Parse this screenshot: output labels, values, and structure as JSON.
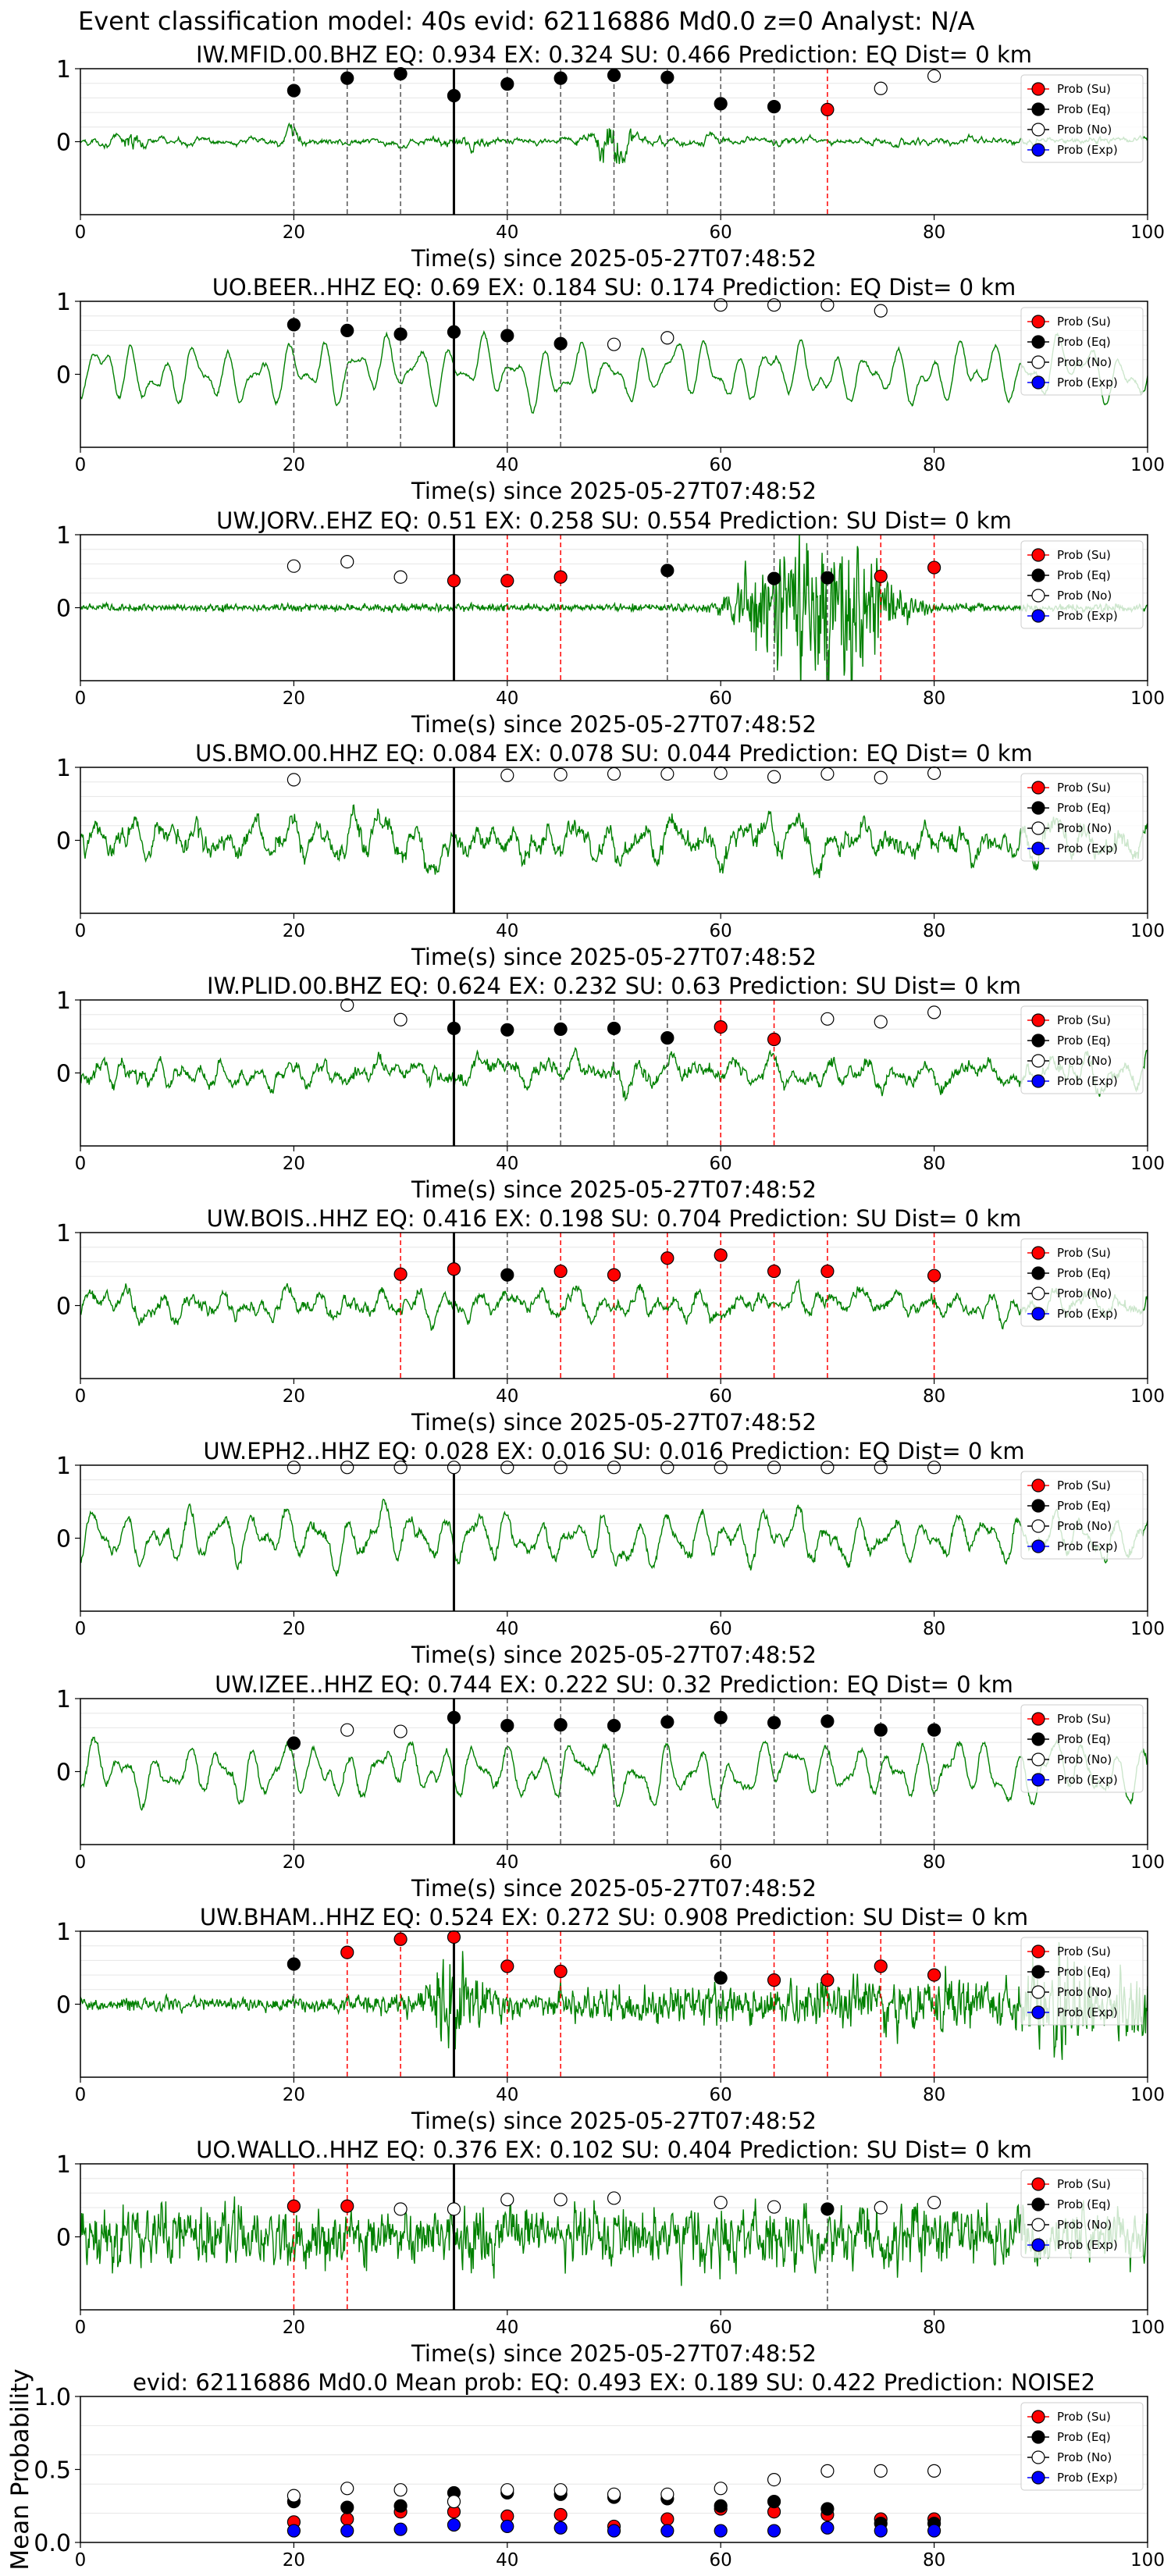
{
  "suptitle": "Event classification model: 40s evid: 62116886 Md0.0 z=0 Analyst: N/A",
  "colors": {
    "trace": "#008000",
    "su": "#ff0000",
    "eq": "#000000",
    "no": "#ffffff",
    "exp": "#0000ff",
    "eq_line": "#555555",
    "su_line": "#ff0000",
    "grid": "#e6e6e6"
  },
  "legend_labels": [
    "Prob (Su)",
    "Prob (Eq)",
    "Prob (No)",
    "Prob (Exp)"
  ],
  "chart_data": [
    {
      "type": "line",
      "title": "IW.MFID.00.BHZ   EQ: 0.934   EX: 0.324   SU: 0.466   Prediction: EQ    Dist= 0 km",
      "xlabel": "Time(s) since 2025-05-27T07:48:52",
      "xlim": [
        0,
        100
      ],
      "ylim": [
        -1,
        1
      ],
      "xticks": [
        0,
        20,
        40,
        60,
        80,
        100
      ],
      "yticks": [
        0,
        1
      ],
      "vline_black": 35,
      "legend": "upper right",
      "trace_style": {
        "amp": 0.12,
        "smooth": 0.85,
        "bursts": [
          {
            "t": 5,
            "a": 0.35,
            "w": 1.2
          },
          {
            "t": 20,
            "a": 0.25,
            "w": 1
          },
          {
            "t": 36,
            "a": 0.15,
            "w": 2
          },
          {
            "t": 50,
            "a": 0.75,
            "w": 1.8
          },
          {
            "t": 58,
            "a": 0.15,
            "w": 2
          }
        ]
      },
      "points": [
        {
          "t": 20,
          "c": "eq",
          "p": 0.7
        },
        {
          "t": 25,
          "c": "eq",
          "p": 0.87
        },
        {
          "t": 30,
          "c": "eq",
          "p": 0.93
        },
        {
          "t": 35,
          "c": "eq",
          "p": 0.63
        },
        {
          "t": 40,
          "c": "eq",
          "p": 0.79
        },
        {
          "t": 45,
          "c": "eq",
          "p": 0.87
        },
        {
          "t": 50,
          "c": "eq",
          "p": 0.91
        },
        {
          "t": 55,
          "c": "eq",
          "p": 0.88
        },
        {
          "t": 60,
          "c": "eq",
          "p": 0.52
        },
        {
          "t": 65,
          "c": "eq",
          "p": 0.48
        },
        {
          "t": 70,
          "c": "su",
          "p": 0.44
        },
        {
          "t": 75,
          "c": "no",
          "p": 0.73
        },
        {
          "t": 80,
          "c": "no",
          "p": 0.9
        }
      ]
    },
    {
      "type": "line",
      "title": "UO.BEER..HHZ   EQ: 0.69   EX: 0.184   SU: 0.174   Prediction: EQ    Dist= 0 km",
      "xlabel": "Time(s) since 2025-05-27T07:48:52",
      "xlim": [
        0,
        100
      ],
      "ylim": [
        -1,
        1
      ],
      "xticks": [
        0,
        20,
        40,
        60,
        80,
        100
      ],
      "yticks": [
        0,
        1
      ],
      "vline_black": 35,
      "legend": "upper right",
      "trace_style": {
        "amp": 0.6,
        "smooth": 0.97,
        "osc": 1.3
      },
      "points": [
        {
          "t": 20,
          "c": "eq",
          "p": 0.68
        },
        {
          "t": 25,
          "c": "eq",
          "p": 0.6
        },
        {
          "t": 30,
          "c": "eq",
          "p": 0.55
        },
        {
          "t": 35,
          "c": "eq",
          "p": 0.58
        },
        {
          "t": 40,
          "c": "eq",
          "p": 0.53
        },
        {
          "t": 45,
          "c": "eq",
          "p": 0.42
        },
        {
          "t": 50,
          "c": "no",
          "p": 0.41
        },
        {
          "t": 55,
          "c": "no",
          "p": 0.5
        },
        {
          "t": 60,
          "c": "no",
          "p": 0.95
        },
        {
          "t": 65,
          "c": "no",
          "p": 0.95
        },
        {
          "t": 70,
          "c": "no",
          "p": 0.95
        },
        {
          "t": 75,
          "c": "no",
          "p": 0.87
        }
      ]
    },
    {
      "type": "line",
      "title": "UW.JORV..EHZ   EQ: 0.51   EX: 0.258   SU: 0.554   Prediction: SU    Dist= 0 km",
      "xlabel": "Time(s) since 2025-05-27T07:48:52",
      "xlim": [
        0,
        100
      ],
      "ylim": [
        -1,
        1
      ],
      "xticks": [
        0,
        20,
        40,
        60,
        80,
        100
      ],
      "yticks": [
        0,
        1
      ],
      "vline_black": 35,
      "legend": "upper right",
      "trace_style": {
        "amp": 0.04,
        "smooth": 0.3,
        "bursts": [
          {
            "t": 70,
            "a": 0.9,
            "w": 5
          },
          {
            "t": 64,
            "a": 0.3,
            "w": 3
          }
        ]
      },
      "points": [
        {
          "t": 20,
          "c": "no",
          "p": 0.57
        },
        {
          "t": 25,
          "c": "no",
          "p": 0.63
        },
        {
          "t": 30,
          "c": "no",
          "p": 0.42
        },
        {
          "t": 35,
          "c": "su",
          "p": 0.37
        },
        {
          "t": 40,
          "c": "su",
          "p": 0.37
        },
        {
          "t": 45,
          "c": "su",
          "p": 0.42
        },
        {
          "t": 55,
          "c": "eq",
          "p": 0.51
        },
        {
          "t": 65,
          "c": "eq",
          "p": 0.4
        },
        {
          "t": 70,
          "c": "eq",
          "p": 0.41
        },
        {
          "t": 75,
          "c": "su",
          "p": 0.43
        },
        {
          "t": 80,
          "c": "su",
          "p": 0.55
        }
      ]
    },
    {
      "type": "line",
      "title": "US.BMO.00.HHZ   EQ: 0.084   EX: 0.078   SU: 0.044   Prediction: EQ    Dist= 0 km",
      "xlabel": "Time(s) since 2025-05-27T07:48:52",
      "xlim": [
        0,
        100
      ],
      "ylim": [
        -1,
        1
      ],
      "xticks": [
        0,
        20,
        40,
        60,
        80,
        100
      ],
      "yticks": [
        0,
        1
      ],
      "vline_black": 35,
      "legend": "upper right",
      "trace_style": {
        "amp": 0.55,
        "smooth": 0.9,
        "osc": 0.8,
        "noise": 0.3
      },
      "points": [
        {
          "t": 20,
          "c": "no",
          "p": 0.83
        },
        {
          "t": 40,
          "c": "no",
          "p": 0.89
        },
        {
          "t": 45,
          "c": "no",
          "p": 0.9
        },
        {
          "t": 50,
          "c": "no",
          "p": 0.91
        },
        {
          "t": 55,
          "c": "no",
          "p": 0.91
        },
        {
          "t": 60,
          "c": "no",
          "p": 0.92
        },
        {
          "t": 65,
          "c": "no",
          "p": 0.87
        },
        {
          "t": 70,
          "c": "no",
          "p": 0.91
        },
        {
          "t": 75,
          "c": "no",
          "p": 0.86
        },
        {
          "t": 80,
          "c": "no",
          "p": 0.92
        }
      ]
    },
    {
      "type": "line",
      "title": "IW.PLID.00.BHZ   EQ: 0.624   EX: 0.232   SU: 0.63   Prediction: SU    Dist= 0 km",
      "xlabel": "Time(s) since 2025-05-27T07:48:52",
      "xlim": [
        0,
        100
      ],
      "ylim": [
        -1,
        1
      ],
      "xticks": [
        0,
        20,
        40,
        60,
        80,
        100
      ],
      "yticks": [
        0,
        1
      ],
      "vline_black": 35,
      "legend": "upper right",
      "trace_style": {
        "amp": 0.4,
        "smooth": 0.9,
        "osc": 0.9,
        "noise": 0.25
      },
      "points": [
        {
          "t": 25,
          "c": "no",
          "p": 0.93
        },
        {
          "t": 30,
          "c": "no",
          "p": 0.73
        },
        {
          "t": 35,
          "c": "eq",
          "p": 0.61
        },
        {
          "t": 40,
          "c": "eq",
          "p": 0.59
        },
        {
          "t": 45,
          "c": "eq",
          "p": 0.6
        },
        {
          "t": 50,
          "c": "eq",
          "p": 0.61
        },
        {
          "t": 55,
          "c": "eq",
          "p": 0.48
        },
        {
          "t": 60,
          "c": "su",
          "p": 0.63
        },
        {
          "t": 65,
          "c": "su",
          "p": 0.46
        },
        {
          "t": 70,
          "c": "no",
          "p": 0.74
        },
        {
          "t": 75,
          "c": "no",
          "p": 0.7
        },
        {
          "t": 80,
          "c": "no",
          "p": 0.83
        }
      ]
    },
    {
      "type": "line",
      "title": "UW.BOIS..HHZ   EQ: 0.416   EX: 0.198   SU: 0.704   Prediction: SU    Dist= 0 km",
      "xlabel": "Time(s) since 2025-05-27T07:48:52",
      "xlim": [
        0,
        100
      ],
      "ylim": [
        -1,
        1
      ],
      "xticks": [
        0,
        20,
        40,
        60,
        80,
        100
      ],
      "yticks": [
        0,
        1
      ],
      "vline_black": 35,
      "legend": "upper right",
      "trace_style": {
        "amp": 0.35,
        "smooth": 0.9,
        "osc": 1.0,
        "noise": 0.25
      },
      "points": [
        {
          "t": 30,
          "c": "su",
          "p": 0.43
        },
        {
          "t": 35,
          "c": "su",
          "p": 0.5
        },
        {
          "t": 40,
          "c": "eq",
          "p": 0.42
        },
        {
          "t": 45,
          "c": "su",
          "p": 0.47
        },
        {
          "t": 50,
          "c": "su",
          "p": 0.42
        },
        {
          "t": 55,
          "c": "su",
          "p": 0.65
        },
        {
          "t": 60,
          "c": "su",
          "p": 0.69
        },
        {
          "t": 65,
          "c": "su",
          "p": 0.47
        },
        {
          "t": 70,
          "c": "su",
          "p": 0.47
        },
        {
          "t": 80,
          "c": "su",
          "p": 0.41
        }
      ]
    },
    {
      "type": "line",
      "title": "UW.EPH2..HHZ   EQ: 0.028   EX: 0.016   SU: 0.016   Prediction: EQ    Dist= 0 km",
      "xlabel": "Time(s) since 2025-05-27T07:48:52",
      "xlim": [
        0,
        100
      ],
      "ylim": [
        -1,
        1
      ],
      "xticks": [
        0,
        20,
        40,
        60,
        80,
        100
      ],
      "yticks": [
        0,
        1
      ],
      "vline_black": 35,
      "legend": "upper right",
      "trace_style": {
        "amp": 0.6,
        "smooth": 0.95,
        "osc": 1.1,
        "noise": 0.15
      },
      "points": [
        {
          "t": 20,
          "c": "no",
          "p": 0.97
        },
        {
          "t": 25,
          "c": "no",
          "p": 0.97
        },
        {
          "t": 30,
          "c": "no",
          "p": 0.97
        },
        {
          "t": 35,
          "c": "no",
          "p": 0.97
        },
        {
          "t": 40,
          "c": "no",
          "p": 0.97
        },
        {
          "t": 45,
          "c": "no",
          "p": 0.97
        },
        {
          "t": 50,
          "c": "no",
          "p": 0.97
        },
        {
          "t": 55,
          "c": "no",
          "p": 0.97
        },
        {
          "t": 60,
          "c": "no",
          "p": 0.97
        },
        {
          "t": 65,
          "c": "no",
          "p": 0.97
        },
        {
          "t": 70,
          "c": "no",
          "p": 0.97
        },
        {
          "t": 75,
          "c": "no",
          "p": 0.97
        },
        {
          "t": 80,
          "c": "no",
          "p": 0.97
        }
      ]
    },
    {
      "type": "line",
      "title": "UW.IZEE..HHZ   EQ: 0.744   EX: 0.222   SU: 0.32   Prediction: EQ    Dist= 0 km",
      "xlabel": "Time(s) since 2025-05-27T07:48:52",
      "xlim": [
        0,
        100
      ],
      "ylim": [
        -1,
        1
      ],
      "xticks": [
        0,
        20,
        40,
        60,
        80,
        100
      ],
      "yticks": [
        0,
        1
      ],
      "vline_black": 35,
      "legend": "upper right",
      "trace_style": {
        "amp": 0.6,
        "smooth": 0.96,
        "osc": 1.2,
        "noise": 0.1
      },
      "points": [
        {
          "t": 20,
          "c": "eq",
          "p": 0.39
        },
        {
          "t": 25,
          "c": "no",
          "p": 0.57
        },
        {
          "t": 30,
          "c": "no",
          "p": 0.55
        },
        {
          "t": 35,
          "c": "eq",
          "p": 0.74
        },
        {
          "t": 40,
          "c": "eq",
          "p": 0.63
        },
        {
          "t": 45,
          "c": "eq",
          "p": 0.64
        },
        {
          "t": 50,
          "c": "eq",
          "p": 0.63
        },
        {
          "t": 55,
          "c": "eq",
          "p": 0.68
        },
        {
          "t": 60,
          "c": "eq",
          "p": 0.74
        },
        {
          "t": 65,
          "c": "eq",
          "p": 0.67
        },
        {
          "t": 70,
          "c": "eq",
          "p": 0.69
        },
        {
          "t": 75,
          "c": "eq",
          "p": 0.57
        },
        {
          "t": 80,
          "c": "eq",
          "p": 0.57
        }
      ]
    },
    {
      "type": "line",
      "title": "UW.BHAM..HHZ   EQ: 0.524   EX: 0.272   SU: 0.908   Prediction: SU    Dist= 0 km",
      "xlabel": "Time(s) since 2025-05-27T07:48:52",
      "xlim": [
        0,
        100
      ],
      "ylim": [
        -1,
        1
      ],
      "xticks": [
        0,
        20,
        40,
        60,
        80,
        100
      ],
      "yticks": [
        0,
        1
      ],
      "vline_black": 35,
      "legend": "upper right",
      "trace_style": {
        "amp": 0.08,
        "smooth": 0.4,
        "ramp": {
          "t0": 20,
          "t1": 100,
          "a": 0.4
        },
        "bursts": [
          {
            "t": 35,
            "a": 0.5,
            "w": 2
          },
          {
            "t": 92,
            "a": 0.3,
            "w": 3
          }
        ]
      },
      "points": [
        {
          "t": 20,
          "c": "eq",
          "p": 0.55
        },
        {
          "t": 25,
          "c": "su",
          "p": 0.71
        },
        {
          "t": 30,
          "c": "su",
          "p": 0.89
        },
        {
          "t": 35,
          "c": "su",
          "p": 0.92
        },
        {
          "t": 40,
          "c": "su",
          "p": 0.52
        },
        {
          "t": 45,
          "c": "su",
          "p": 0.45
        },
        {
          "t": 60,
          "c": "eq",
          "p": 0.36
        },
        {
          "t": 65,
          "c": "su",
          "p": 0.33
        },
        {
          "t": 70,
          "c": "su",
          "p": 0.33
        },
        {
          "t": 75,
          "c": "su",
          "p": 0.52
        },
        {
          "t": 80,
          "c": "su",
          "p": 0.4
        }
      ]
    },
    {
      "type": "line",
      "title": "UO.WALLO..HHZ   EQ: 0.376   EX: 0.102   SU: 0.404   Prediction: SU    Dist= 0 km",
      "xlabel": "Time(s) since 2025-05-27T07:48:52",
      "xlim": [
        0,
        100
      ],
      "ylim": [
        -1,
        1
      ],
      "xticks": [
        0,
        20,
        40,
        60,
        80,
        100
      ],
      "yticks": [
        0,
        1
      ],
      "vline_black": 35,
      "legend": "upper right",
      "trace_style": {
        "amp": 0.4,
        "smooth": 0.5,
        "osc": 0.3,
        "noise": 0.5
      },
      "points": [
        {
          "t": 20,
          "c": "su",
          "p": 0.42
        },
        {
          "t": 25,
          "c": "su",
          "p": 0.42
        },
        {
          "t": 30,
          "c": "no",
          "p": 0.38
        },
        {
          "t": 35,
          "c": "no",
          "p": 0.38
        },
        {
          "t": 40,
          "c": "no",
          "p": 0.51
        },
        {
          "t": 45,
          "c": "no",
          "p": 0.51
        },
        {
          "t": 50,
          "c": "no",
          "p": 0.53
        },
        {
          "t": 60,
          "c": "no",
          "p": 0.47
        },
        {
          "t": 65,
          "c": "no",
          "p": 0.41
        },
        {
          "t": 70,
          "c": "eq",
          "p": 0.38
        },
        {
          "t": 75,
          "c": "no",
          "p": 0.4
        },
        {
          "t": 80,
          "c": "no",
          "p": 0.47
        }
      ]
    },
    {
      "type": "scatter",
      "title": "evid: 62116886  Md0.0   Mean prob:   EQ: 0.493  EX: 0.189  SU: 0.422   Prediction: NOISE2",
      "xlabel": "",
      "ylabel": "Mean Probability",
      "xlim": [
        0,
        100
      ],
      "ylim": [
        0,
        1
      ],
      "xticks": [
        0,
        20,
        40,
        60,
        80,
        100
      ],
      "yticks": [
        0.0,
        0.5,
        1.0
      ],
      "ytick_labels": [
        "0.0",
        "0.5",
        "1.0"
      ],
      "legend": "upper right",
      "series": [
        {
          "name": "Prob (Su)",
          "c": "su",
          "x": [
            20,
            25,
            30,
            35,
            40,
            45,
            50,
            55,
            60,
            65,
            70,
            75,
            80
          ],
          "y": [
            0.14,
            0.16,
            0.21,
            0.21,
            0.18,
            0.19,
            0.11,
            0.16,
            0.23,
            0.21,
            0.19,
            0.16,
            0.16
          ]
        },
        {
          "name": "Prob (Eq)",
          "c": "eq",
          "x": [
            20,
            25,
            30,
            35,
            40,
            45,
            50,
            55,
            60,
            65,
            70,
            75,
            80
          ],
          "y": [
            0.28,
            0.24,
            0.25,
            0.34,
            0.34,
            0.33,
            0.31,
            0.3,
            0.25,
            0.28,
            0.23,
            0.13,
            0.13
          ]
        },
        {
          "name": "Prob (No)",
          "c": "no",
          "x": [
            20,
            25,
            30,
            35,
            40,
            45,
            50,
            55,
            60,
            65,
            70,
            75,
            80
          ],
          "y": [
            0.32,
            0.37,
            0.36,
            0.28,
            0.36,
            0.36,
            0.33,
            0.33,
            0.37,
            0.43,
            0.49,
            0.49,
            0.49
          ]
        },
        {
          "name": "Prob (Exp)",
          "c": "exp",
          "x": [
            20,
            25,
            30,
            35,
            40,
            45,
            50,
            55,
            60,
            65,
            70,
            75,
            80
          ],
          "y": [
            0.08,
            0.08,
            0.09,
            0.12,
            0.11,
            0.1,
            0.08,
            0.08,
            0.08,
            0.08,
            0.1,
            0.08,
            0.08
          ]
        }
      ]
    }
  ]
}
